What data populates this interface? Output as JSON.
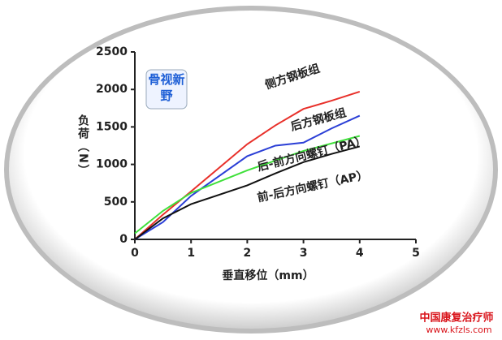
{
  "chart_data": {
    "type": "line",
    "x_label": "垂直移位（mm）",
    "y_label": "负荷（N）",
    "logo": "骨视新野",
    "watermark": [
      "中国康复治疗师",
      "www.kfzls.com"
    ],
    "x": [
      0,
      0.5,
      1,
      2,
      2.5,
      3,
      3.5,
      4
    ],
    "series": [
      {
        "name": "侧方钢板组",
        "color": "#e8302a",
        "values": [
          0,
          330,
          640,
          1270,
          1520,
          1740,
          1850,
          1970
        ]
      },
      {
        "name": "后方钢板组",
        "color": "#2b3fd6",
        "values": [
          0,
          230,
          580,
          1110,
          1250,
          1290,
          1480,
          1650
        ]
      },
      {
        "name": "后-前方向螺钉（PA）",
        "color": "#3fe03a",
        "values": [
          80,
          380,
          620,
          920,
          1050,
          1180,
          1280,
          1380
        ]
      },
      {
        "name": "前-后方向螺钉（AP）",
        "color": "#111111",
        "values": [
          0,
          280,
          470,
          720,
          880,
          1030,
          1140,
          1240
        ]
      }
    ],
    "xlim": [
      0,
      5
    ],
    "xticks": [
      0,
      1,
      2,
      3,
      4,
      5
    ],
    "ylim": [
      0,
      2500
    ],
    "yticks": [
      0,
      500,
      1000,
      1500,
      2000,
      2500
    ]
  }
}
